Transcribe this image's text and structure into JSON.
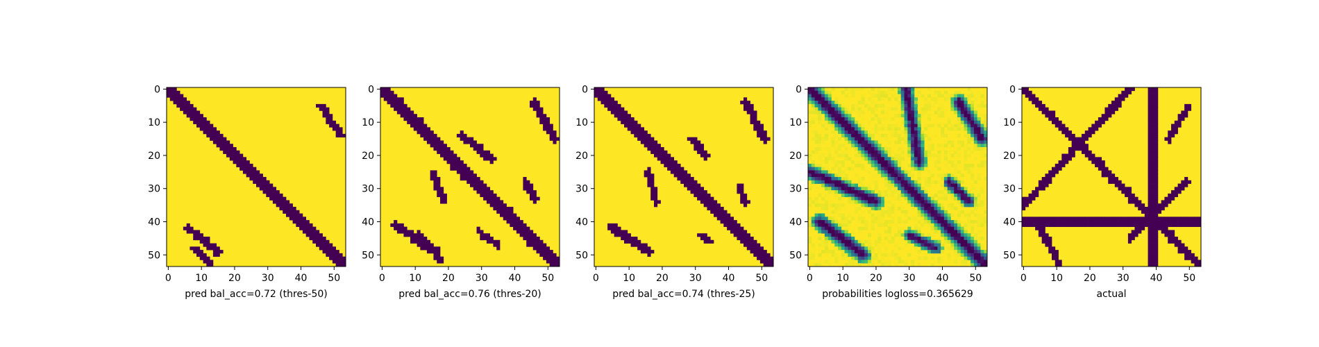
{
  "colors": {
    "viridis_low": "#440154",
    "viridis_high": "#fde725",
    "frame": "#000000",
    "background": "#ffffff"
  },
  "chart_data": [
    {
      "type": "heatmap",
      "xlabel": "pred bal_acc=0.72 (thres-50)",
      "x_ticks": [
        0,
        10,
        20,
        30,
        40,
        50
      ],
      "y_ticks": [
        0,
        10,
        20,
        30,
        40,
        50
      ],
      "grid_size": 54,
      "binary": true,
      "features": [
        {
          "kind": "diagonal",
          "offset": 0,
          "halfwidth": 2
        },
        {
          "kind": "blob",
          "r0": 5,
          "c0": 46,
          "r1": 14,
          "c1": 52,
          "w": 1.1
        },
        {
          "kind": "blob",
          "r0": 42,
          "c0": 6,
          "r1": 49,
          "c1": 15,
          "w": 1.2
        },
        {
          "kind": "blob",
          "r0": 48,
          "c0": 8,
          "r1": 53,
          "c1": 13,
          "w": 0.9
        }
      ]
    },
    {
      "type": "heatmap",
      "xlabel": "pred bal_acc=0.76 (thres-20)",
      "x_ticks": [
        0,
        10,
        20,
        30,
        40,
        50
      ],
      "y_ticks": [
        0,
        10,
        20,
        30,
        40,
        50
      ],
      "grid_size": 54,
      "binary": true,
      "features": [
        {
          "kind": "diagonal",
          "offset": 0,
          "halfwidth": 2.3
        },
        {
          "kind": "blob",
          "r0": 4,
          "c0": 46,
          "r1": 15,
          "c1": 52,
          "w": 1.3
        },
        {
          "kind": "blob",
          "r0": 14,
          "c0": 24,
          "r1": 21,
          "c1": 33,
          "w": 1.1
        },
        {
          "kind": "blob",
          "r0": 25,
          "c0": 15,
          "r1": 34,
          "c1": 19,
          "w": 1.0
        },
        {
          "kind": "blob",
          "r0": 28,
          "c0": 43,
          "r1": 33,
          "c1": 46,
          "w": 1.0
        },
        {
          "kind": "blob",
          "r0": 41,
          "c0": 4,
          "r1": 49,
          "c1": 16,
          "w": 1.4
        },
        {
          "kind": "blob",
          "r0": 44,
          "c0": 11,
          "r1": 52,
          "c1": 18,
          "w": 1.0
        },
        {
          "kind": "blob",
          "r0": 43,
          "c0": 29,
          "r1": 47,
          "c1": 35,
          "w": 0.9
        }
      ]
    },
    {
      "type": "heatmap",
      "xlabel": "pred bal_acc=0.74 (thres-25)",
      "x_ticks": [
        0,
        10,
        20,
        30,
        40,
        50
      ],
      "y_ticks": [
        0,
        10,
        20,
        30,
        40,
        50
      ],
      "grid_size": 54,
      "binary": true,
      "features": [
        {
          "kind": "diagonal",
          "offset": 0,
          "halfwidth": 2.2
        },
        {
          "kind": "blob",
          "r0": 4,
          "c0": 45,
          "r1": 15,
          "c1": 51,
          "w": 1.3
        },
        {
          "kind": "blob",
          "r0": 15,
          "c0": 29,
          "r1": 20,
          "c1": 33,
          "w": 1.0
        },
        {
          "kind": "blob",
          "r0": 25,
          "c0": 16,
          "r1": 34,
          "c1": 18,
          "w": 1.0
        },
        {
          "kind": "blob",
          "r0": 29,
          "c0": 43,
          "r1": 34,
          "c1": 45,
          "w": 0.9
        },
        {
          "kind": "blob",
          "r0": 42,
          "c0": 5,
          "r1": 49,
          "c1": 16,
          "w": 1.4
        },
        {
          "kind": "blob",
          "r0": 44,
          "c0": 32,
          "r1": 46,
          "c1": 34,
          "w": 0.8
        }
      ]
    },
    {
      "type": "heatmap",
      "xlabel": "probabilities logloss=0.365629",
      "x_ticks": [
        0,
        10,
        20,
        30,
        40,
        50
      ],
      "y_ticks": [
        0,
        10,
        20,
        30,
        40,
        50
      ],
      "grid_size": 54,
      "binary": false,
      "features": [
        {
          "kind": "diagonal",
          "offset": 0,
          "halfwidth": 2.5
        },
        {
          "kind": "blob",
          "r0": 4,
          "c0": 45,
          "r1": 15,
          "c1": 52,
          "w": 2.2
        },
        {
          "kind": "blob",
          "r0": 0,
          "c0": 29,
          "r1": 22,
          "c1": 33,
          "w": 2.0
        },
        {
          "kind": "blob",
          "r0": 25,
          "c0": 0,
          "r1": 34,
          "c1": 20,
          "w": 2.0
        },
        {
          "kind": "blob",
          "r0": 28,
          "c0": 42,
          "r1": 34,
          "c1": 48,
          "w": 1.6
        },
        {
          "kind": "blob",
          "r0": 40,
          "c0": 3,
          "r1": 50,
          "c1": 16,
          "w": 2.3
        },
        {
          "kind": "blob",
          "r0": 44,
          "c0": 30,
          "r1": 48,
          "c1": 38,
          "w": 1.6
        }
      ]
    },
    {
      "type": "heatmap",
      "xlabel": "actual",
      "x_ticks": [
        0,
        10,
        20,
        30,
        40,
        50
      ],
      "y_ticks": [
        0,
        10,
        20,
        30,
        40,
        50
      ],
      "grid_size": 54,
      "binary": true,
      "features": [
        {
          "kind": "diagonal",
          "offset": 0,
          "halfwidth": 1.3
        },
        {
          "kind": "vband",
          "c0": 38,
          "c1": 40
        },
        {
          "kind": "hband",
          "r0": 39,
          "r1": 41
        },
        {
          "kind": "blob",
          "r0": 0,
          "c0": 32,
          "r1": 35,
          "c1": 0,
          "w": 1.2
        },
        {
          "kind": "blob",
          "r0": 5,
          "c0": 50,
          "r1": 15,
          "c1": 44,
          "w": 1.0
        },
        {
          "kind": "blob",
          "r0": 28,
          "c0": 49,
          "r1": 45,
          "c1": 32,
          "w": 1.0
        },
        {
          "kind": "blob",
          "r0": 42,
          "c0": 5,
          "r1": 53,
          "c1": 11,
          "w": 1.0
        }
      ]
    }
  ]
}
